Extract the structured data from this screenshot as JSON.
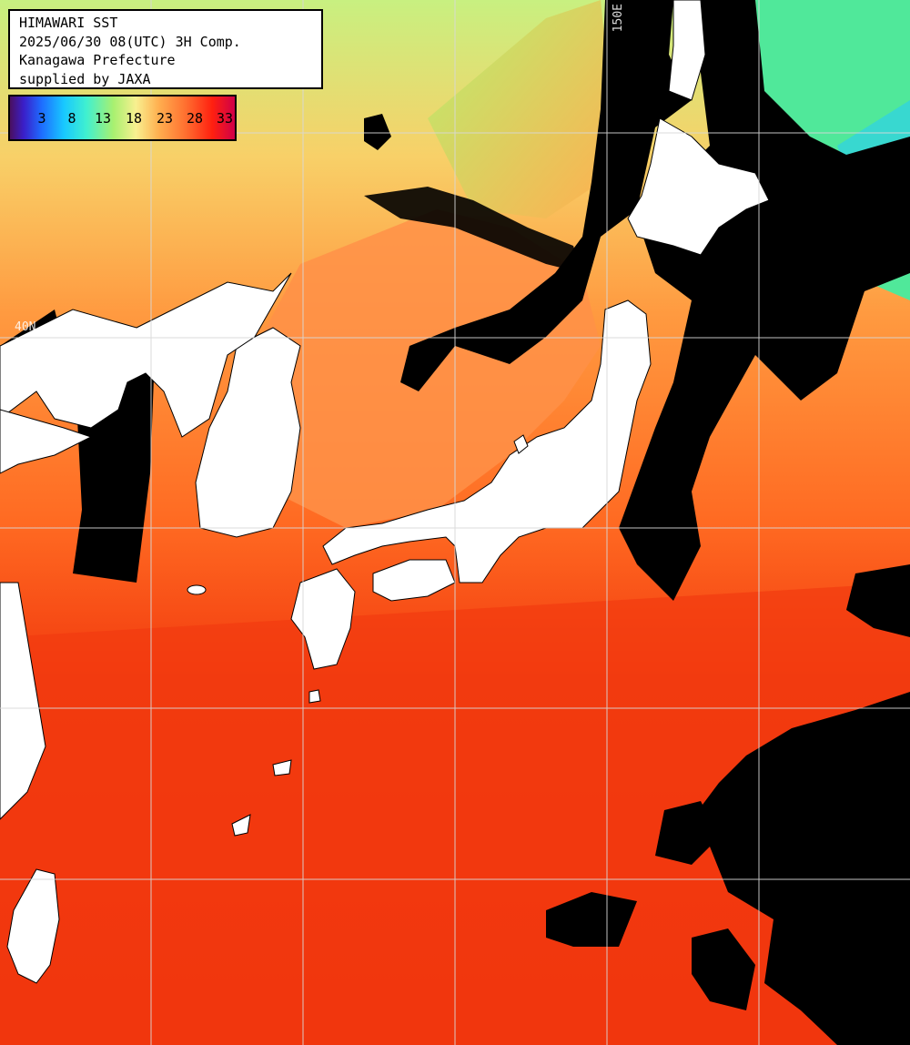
{
  "header": {
    "line1": "HIMAWARI SST",
    "line2": "2025/06/30 08(UTC) 3H Comp.",
    "line3": "Kanagawa Prefecture",
    "line4": "supplied by JAXA"
  },
  "legend": {
    "ticks": [
      "3",
      "8",
      "13",
      "18",
      "23",
      "28",
      "33"
    ]
  },
  "grid": {
    "lat_label": "40N",
    "lon_label": "150E"
  },
  "colors": {
    "land": "#ffffff",
    "cloud_no_data": "#000000",
    "warm_sea": "#f22e0c",
    "mid_sea": "#ff8a30",
    "cool_sea": "#b8f070",
    "cold_sea": "#40f0c8",
    "grid_line": "#d8d8d8"
  }
}
